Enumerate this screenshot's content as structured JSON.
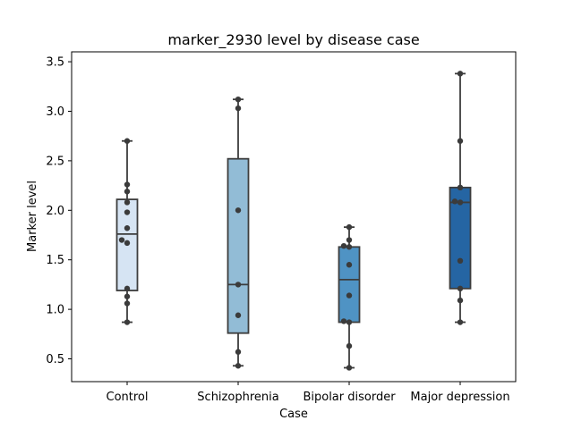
{
  "chart_data": {
    "type": "box",
    "title": "marker_2930 level by disease case",
    "xlabel": "Case",
    "ylabel": "Marker level",
    "ylim": [
      0.27,
      3.6
    ],
    "yticks": [
      "0.5",
      "1.0",
      "1.5",
      "2.0",
      "2.5",
      "3.0",
      "3.5"
    ],
    "ytick_values": [
      0.5,
      1.0,
      1.5,
      2.0,
      2.5,
      3.0,
      3.5
    ],
    "categories": [
      "Control",
      "Schizophrenia",
      "Bipolar disorder",
      "Major depression"
    ],
    "colors": [
      "#d6e4f3",
      "#92bcd6",
      "#4f93c4",
      "#2565a3"
    ],
    "groups": [
      {
        "name": "Control",
        "box": {
          "whisker_low": 0.87,
          "q1": 1.19,
          "median": 1.76,
          "q3": 2.11,
          "whisker_high": 2.7
        },
        "points": [
          0.87,
          1.06,
          1.13,
          1.21,
          1.67,
          1.7,
          1.82,
          1.98,
          2.08,
          2.19,
          2.26,
          2.7
        ]
      },
      {
        "name": "Schizophrenia",
        "box": {
          "whisker_low": 0.43,
          "q1": 0.76,
          "median": 1.25,
          "q3": 2.52,
          "whisker_high": 3.12
        },
        "points": [
          0.43,
          0.57,
          0.94,
          1.25,
          2.0,
          3.03,
          3.12
        ]
      },
      {
        "name": "Bipolar disorder",
        "box": {
          "whisker_low": 0.41,
          "q1": 0.87,
          "median": 1.3,
          "q3": 1.63,
          "whisker_high": 1.83
        },
        "points": [
          0.41,
          0.63,
          0.87,
          0.88,
          1.14,
          1.45,
          1.63,
          1.64,
          1.7,
          1.83
        ]
      },
      {
        "name": "Major depression",
        "box": {
          "whisker_low": 0.87,
          "q1": 1.21,
          "median": 2.08,
          "q3": 2.23,
          "whisker_high": 3.38
        },
        "points": [
          0.87,
          1.09,
          1.21,
          1.49,
          2.08,
          2.09,
          2.23,
          2.7,
          3.38
        ]
      }
    ]
  }
}
